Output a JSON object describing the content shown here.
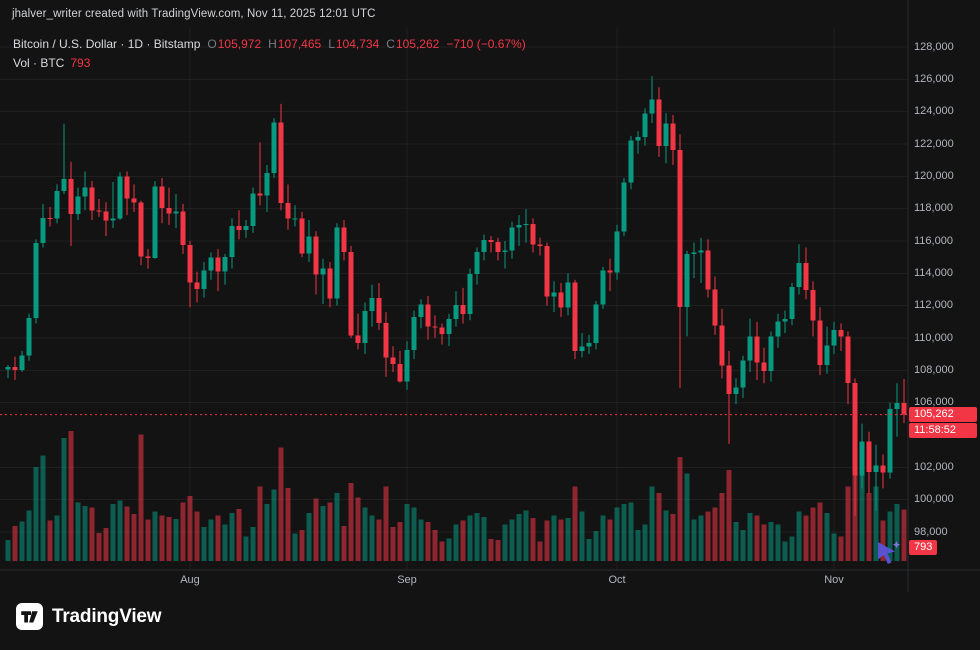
{
  "attribution": "jhalver_writer created with TradingView.com, Nov 11, 2025 12:01 UTC",
  "legend": {
    "title": "Bitcoin / U.S. Dollar · 1D · Bitstamp",
    "open_label": "O",
    "open": "105,972",
    "high_label": "H",
    "high": "107,465",
    "low_label": "L",
    "low": "104,734",
    "close_label": "C",
    "close": "105,262",
    "change": "−710 (−0.67%)",
    "volume_label": "Vol · BTC",
    "volume": "793"
  },
  "price_badge": {
    "price": "105,262",
    "countdown": "11:58:52"
  },
  "volume_badge": "793",
  "logo": {
    "text": "TradingView"
  },
  "colors": {
    "up": "#089981",
    "down": "#f23645",
    "background": "#131314",
    "axis_text": "#b2b5be",
    "badge": "#f23645",
    "grid": "rgba(255,255,255,0.05)",
    "axis_border": "#2a2b2e"
  },
  "chart_data": {
    "type": "candlestick+volume-bar",
    "title": "Bitcoin / U.S. Dollar, 1D, Bitstamp",
    "symbol": "BTC/USD",
    "interval": "1D",
    "current_price": 105262,
    "price_axis": {
      "min": 98000,
      "max": 128000,
      "labels": [
        "128,000",
        "126,000",
        "124,000",
        "122,000",
        "120,000",
        "118,000",
        "116,000",
        "114,000",
        "112,000",
        "110,000",
        "108,000",
        "106,000",
        "102,000",
        "100,000",
        "98,000"
      ]
    },
    "time_axis": [
      {
        "label": "Aug",
        "index": 26
      },
      {
        "label": "Sep",
        "index": 57
      },
      {
        "label": "Oct",
        "index": 87
      },
      {
        "label": "Nov",
        "index": 118
      }
    ],
    "columns": [
      "date",
      "open",
      "high",
      "low",
      "close",
      "volume_btc"
    ],
    "candles": [
      [
        "2025-07-06",
        108040,
        108330,
        107520,
        108220,
        320
      ],
      [
        "2025-07-07",
        108220,
        108850,
        107400,
        108030,
        540
      ],
      [
        "2025-07-08",
        108030,
        109200,
        107900,
        108920,
        610
      ],
      [
        "2025-07-09",
        108920,
        111500,
        108600,
        111250,
        780
      ],
      [
        "2025-07-10",
        111250,
        116100,
        110900,
        115880,
        1450
      ],
      [
        "2025-07-11",
        115880,
        118300,
        115600,
        117420,
        1620
      ],
      [
        "2025-07-12",
        117420,
        118100,
        116900,
        117400,
        620
      ],
      [
        "2025-07-13",
        117400,
        119500,
        117100,
        119100,
        700
      ],
      [
        "2025-07-14",
        119100,
        123250,
        118900,
        119850,
        1890
      ],
      [
        "2025-07-15",
        119850,
        120900,
        115700,
        117680,
        2000
      ],
      [
        "2025-07-16",
        117680,
        119300,
        117300,
        118740,
        900
      ],
      [
        "2025-07-17",
        118740,
        120300,
        117900,
        119300,
        850
      ],
      [
        "2025-07-18",
        119300,
        119700,
        117300,
        117900,
        820
      ],
      [
        "2025-07-19",
        117900,
        118600,
        117500,
        117820,
        430
      ],
      [
        "2025-07-20",
        117820,
        118400,
        116300,
        117280,
        510
      ],
      [
        "2025-07-21",
        117280,
        119650,
        116800,
        117400,
        880
      ],
      [
        "2025-07-22",
        117400,
        120250,
        117300,
        119980,
        930
      ],
      [
        "2025-07-23",
        119980,
        120300,
        117600,
        118620,
        840
      ],
      [
        "2025-07-24",
        118620,
        119500,
        117800,
        118370,
        720
      ],
      [
        "2025-07-25",
        118370,
        118500,
        114500,
        115050,
        1950
      ],
      [
        "2025-07-26",
        115050,
        115500,
        114300,
        114950,
        640
      ],
      [
        "2025-07-27",
        114950,
        119700,
        114900,
        119380,
        760
      ],
      [
        "2025-07-28",
        119380,
        119900,
        117100,
        118030,
        700
      ],
      [
        "2025-07-29",
        118030,
        119300,
        117000,
        117700,
        680
      ],
      [
        "2025-07-30",
        117700,
        118900,
        116800,
        117830,
        650
      ],
      [
        "2025-07-31",
        117830,
        118300,
        115200,
        115760,
        900
      ],
      [
        "2025-08-01",
        115760,
        116000,
        111900,
        113420,
        1000
      ],
      [
        "2025-08-02",
        113420,
        114100,
        112200,
        113020,
        760
      ],
      [
        "2025-08-03",
        113020,
        114700,
        112500,
        114180,
        520
      ],
      [
        "2025-08-04",
        114180,
        115300,
        113600,
        114970,
        640
      ],
      [
        "2025-08-05",
        114970,
        115500,
        112900,
        114110,
        700
      ],
      [
        "2025-08-06",
        114110,
        115200,
        113300,
        115010,
        560
      ],
      [
        "2025-08-07",
        115010,
        117400,
        114300,
        116930,
        740
      ],
      [
        "2025-08-08",
        116930,
        117900,
        116100,
        116680,
        800
      ],
      [
        "2025-08-09",
        116680,
        117300,
        116200,
        116940,
        380
      ],
      [
        "2025-08-10",
        116940,
        119300,
        116500,
        118950,
        520
      ],
      [
        "2025-08-11",
        118950,
        122100,
        118200,
        118820,
        1150
      ],
      [
        "2025-08-12",
        118820,
        120700,
        117800,
        120210,
        880
      ],
      [
        "2025-08-13",
        120210,
        123600,
        119900,
        123320,
        1100
      ],
      [
        "2025-08-14",
        123320,
        124480,
        117900,
        118340,
        1750
      ],
      [
        "2025-08-15",
        118340,
        119500,
        116700,
        117380,
        1120
      ],
      [
        "2025-08-16",
        117380,
        118200,
        116900,
        117400,
        420
      ],
      [
        "2025-08-17",
        117400,
        117800,
        115000,
        115230,
        480
      ],
      [
        "2025-08-18",
        115230,
        117300,
        114700,
        116280,
        740
      ],
      [
        "2025-08-19",
        116280,
        116600,
        112700,
        113930,
        960
      ],
      [
        "2025-08-20",
        113930,
        114900,
        112100,
        114310,
        850
      ],
      [
        "2025-08-21",
        114310,
        114700,
        111900,
        112440,
        900
      ],
      [
        "2025-08-22",
        112440,
        117100,
        112000,
        116840,
        1050
      ],
      [
        "2025-08-23",
        116840,
        117300,
        114800,
        115320,
        540
      ],
      [
        "2025-08-24",
        115320,
        115700,
        110000,
        110140,
        1200
      ],
      [
        "2025-08-25",
        110140,
        111500,
        109300,
        109680,
        980
      ],
      [
        "2025-08-26",
        109680,
        112200,
        109000,
        111680,
        820
      ],
      [
        "2025-08-27",
        111680,
        113300,
        110700,
        112480,
        700
      ],
      [
        "2025-08-28",
        112480,
        113400,
        110500,
        110920,
        640
      ],
      [
        "2025-08-29",
        110920,
        111600,
        107600,
        108790,
        1150
      ],
      [
        "2025-08-30",
        108790,
        109500,
        107900,
        108390,
        520
      ],
      [
        "2025-08-31",
        108390,
        109200,
        107250,
        107310,
        600
      ],
      [
        "2025-09-01",
        107310,
        109800,
        106800,
        109250,
        880
      ],
      [
        "2025-09-02",
        109250,
        111700,
        108700,
        111310,
        820
      ],
      [
        "2025-09-03",
        111310,
        112400,
        110600,
        112080,
        640
      ],
      [
        "2025-09-04",
        112080,
        112600,
        109900,
        110720,
        600
      ],
      [
        "2025-09-05",
        110720,
        111400,
        110000,
        110650,
        480
      ],
      [
        "2025-09-06",
        110650,
        110900,
        109600,
        110240,
        300
      ],
      [
        "2025-09-07",
        110240,
        111500,
        109500,
        111170,
        350
      ],
      [
        "2025-09-08",
        111170,
        112900,
        110700,
        112030,
        560
      ],
      [
        "2025-09-09",
        112030,
        113100,
        110900,
        111480,
        620
      ],
      [
        "2025-09-10",
        111480,
        114300,
        111100,
        113960,
        700
      ],
      [
        "2025-09-11",
        113960,
        115600,
        113300,
        115320,
        740
      ],
      [
        "2025-09-12",
        115320,
        116400,
        114800,
        116060,
        680
      ],
      [
        "2025-09-13",
        116060,
        116300,
        115300,
        115930,
        340
      ],
      [
        "2025-09-14",
        115930,
        116200,
        114800,
        115330,
        320
      ],
      [
        "2025-09-15",
        115330,
        116000,
        114300,
        115420,
        560
      ],
      [
        "2025-09-16",
        115420,
        117200,
        114900,
        116830,
        640
      ],
      [
        "2025-09-17",
        116830,
        117600,
        115700,
        116980,
        720
      ],
      [
        "2025-09-18",
        116980,
        117980,
        115900,
        117060,
        780
      ],
      [
        "2025-09-19",
        117060,
        117400,
        115300,
        115780,
        660
      ],
      [
        "2025-09-20",
        115780,
        116200,
        115100,
        115680,
        300
      ],
      [
        "2025-09-21",
        115680,
        115900,
        112000,
        112580,
        620
      ],
      [
        "2025-09-22",
        112580,
        113500,
        111600,
        112810,
        700
      ],
      [
        "2025-09-23",
        112810,
        113400,
        111300,
        111880,
        640
      ],
      [
        "2025-09-24",
        111880,
        114000,
        111400,
        113420,
        660
      ],
      [
        "2025-09-25",
        113420,
        113600,
        108700,
        109210,
        1150
      ],
      [
        "2025-09-26",
        109210,
        110300,
        108800,
        109470,
        760
      ],
      [
        "2025-09-27",
        109470,
        110200,
        109000,
        109690,
        340
      ],
      [
        "2025-09-28",
        109690,
        112300,
        109300,
        112060,
        460
      ],
      [
        "2025-09-29",
        112060,
        114400,
        111800,
        114190,
        700
      ],
      [
        "2025-09-30",
        114190,
        114900,
        112900,
        114040,
        640
      ],
      [
        "2025-10-01",
        114040,
        117000,
        113600,
        116590,
        820
      ],
      [
        "2025-10-02",
        116590,
        119900,
        116300,
        119620,
        880
      ],
      [
        "2025-10-03",
        119620,
        122500,
        119200,
        122230,
        900
      ],
      [
        "2025-10-04",
        122230,
        122800,
        121400,
        122420,
        480
      ],
      [
        "2025-10-05",
        122420,
        124200,
        121900,
        123880,
        560
      ],
      [
        "2025-10-06",
        123880,
        126190,
        123300,
        124760,
        1150
      ],
      [
        "2025-10-07",
        124760,
        125500,
        121200,
        121890,
        1050
      ],
      [
        "2025-10-08",
        121890,
        123900,
        120800,
        123260,
        780
      ],
      [
        "2025-10-09",
        123260,
        123800,
        120700,
        121640,
        720
      ],
      [
        "2025-10-10",
        121640,
        122600,
        106900,
        111930,
        1600
      ],
      [
        "2025-10-11",
        111930,
        115400,
        110100,
        115190,
        1350
      ],
      [
        "2025-10-12",
        115190,
        115900,
        113700,
        115300,
        640
      ],
      [
        "2025-10-13",
        115300,
        116200,
        113400,
        115420,
        700
      ],
      [
        "2025-10-14",
        115420,
        116100,
        112500,
        113010,
        760
      ],
      [
        "2025-10-15",
        113010,
        113800,
        110200,
        110770,
        820
      ],
      [
        "2025-10-16",
        110770,
        111800,
        107500,
        108310,
        1050
      ],
      [
        "2025-10-17",
        108310,
        109200,
        103450,
        106540,
        1400
      ],
      [
        "2025-10-18",
        106540,
        107500,
        105900,
        106930,
        600
      ],
      [
        "2025-10-19",
        106930,
        108900,
        106300,
        108620,
        480
      ],
      [
        "2025-10-20",
        108620,
        111200,
        107900,
        110100,
        740
      ],
      [
        "2025-10-21",
        110100,
        111000,
        107400,
        108470,
        700
      ],
      [
        "2025-10-22",
        108470,
        109400,
        107200,
        107970,
        560
      ],
      [
        "2025-10-23",
        107970,
        110400,
        107300,
        110090,
        600
      ],
      [
        "2025-10-24",
        110090,
        111500,
        109400,
        111010,
        560
      ],
      [
        "2025-10-25",
        111010,
        111700,
        110300,
        111190,
        300
      ],
      [
        "2025-10-26",
        111190,
        113400,
        110800,
        113170,
        380
      ],
      [
        "2025-10-27",
        113170,
        115800,
        112700,
        114630,
        760
      ],
      [
        "2025-10-28",
        114630,
        115600,
        112400,
        112970,
        700
      ],
      [
        "2025-10-29",
        112970,
        113500,
        110100,
        111080,
        820
      ],
      [
        "2025-10-30",
        111080,
        111900,
        107700,
        108340,
        900
      ],
      [
        "2025-10-31",
        108340,
        110700,
        107800,
        109530,
        740
      ],
      [
        "2025-11-01",
        109530,
        111000,
        109000,
        110480,
        420
      ],
      [
        "2025-11-02",
        110480,
        110900,
        109200,
        110080,
        380
      ],
      [
        "2025-11-03",
        110080,
        110400,
        105900,
        107220,
        1150
      ],
      [
        "2025-11-04",
        107220,
        107500,
        99000,
        101480,
        1550
      ],
      [
        "2025-11-05",
        101480,
        104700,
        100700,
        103610,
        1500
      ],
      [
        "2025-11-06",
        103610,
        104200,
        100400,
        101710,
        1050
      ],
      [
        "2025-11-07",
        101710,
        103400,
        99300,
        102110,
        1150
      ],
      [
        "2025-11-08",
        102110,
        102800,
        100700,
        101690,
        620
      ],
      [
        "2025-11-09",
        101690,
        106000,
        101300,
        105610,
        760
      ],
      [
        "2025-11-10",
        105610,
        107200,
        103900,
        105972,
        880
      ],
      [
        "2025-11-11",
        105972,
        107465,
        104734,
        105262,
        793
      ]
    ]
  }
}
